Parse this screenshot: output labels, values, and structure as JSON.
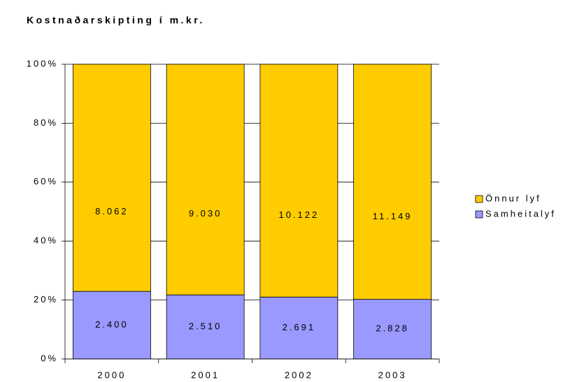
{
  "chart_data": {
    "type": "stacked_percent_bar",
    "title": "Kostnaðarskipting í m.kr.",
    "categories": [
      "2000",
      "2001",
      "2002",
      "2003"
    ],
    "series": [
      {
        "name": "Samheitalyf",
        "color": "#9999ff",
        "values": [
          2400,
          2510,
          2691,
          2828
        ],
        "value_labels": [
          "2.400",
          "2.510",
          "2.691",
          "2.828"
        ]
      },
      {
        "name": "Önnur lyf",
        "color": "#ffcc00",
        "values": [
          8062,
          9030,
          10122,
          11149
        ],
        "value_labels": [
          "8.062",
          "9.030",
          "10.122",
          "11.149"
        ]
      }
    ],
    "ylim": [
      0,
      100
    ],
    "yticks": [
      {
        "value": 0,
        "label": "0%"
      },
      {
        "value": 20,
        "label": "20%"
      },
      {
        "value": 40,
        "label": "40%"
      },
      {
        "value": 60,
        "label": "60%"
      },
      {
        "value": 80,
        "label": "80%"
      },
      {
        "value": 100,
        "label": "100%"
      }
    ],
    "grid": true,
    "legend": "right"
  }
}
